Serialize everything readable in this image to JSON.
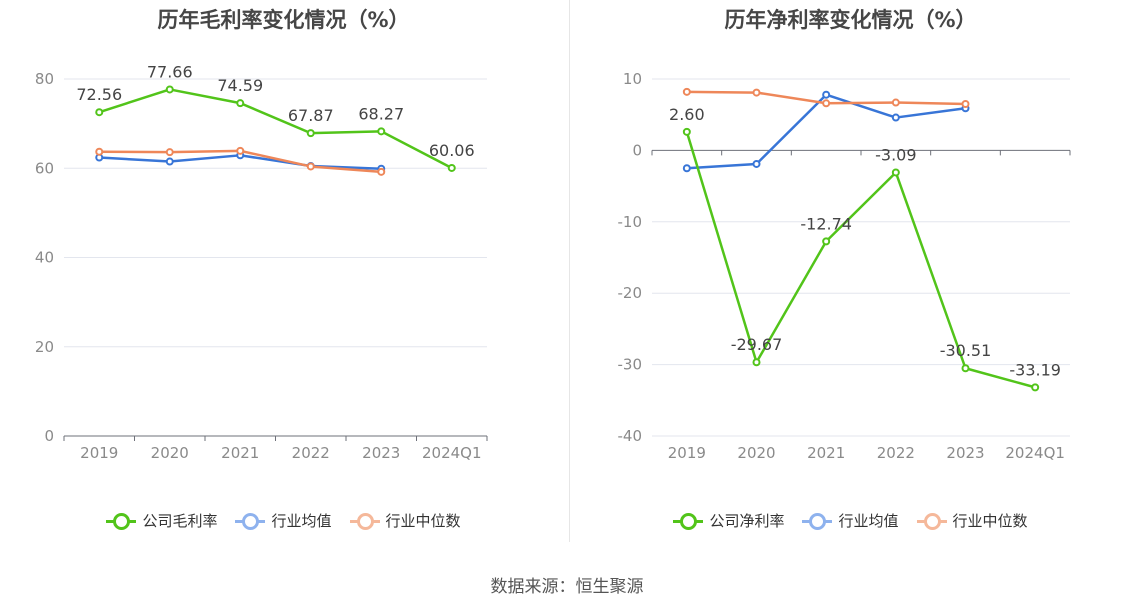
{
  "footer": {
    "source": "数据来源：恒生聚源"
  },
  "chart_data": [
    {
      "type": "line",
      "title": "历年毛利率变化情况（%）",
      "categories": [
        "2019",
        "2020",
        "2021",
        "2022",
        "2023",
        "2024Q1"
      ],
      "ylim": [
        0,
        80
      ],
      "yticks": [
        0,
        20,
        40,
        60,
        80
      ],
      "grid": true,
      "legend_position": "bottom",
      "series": [
        {
          "name": "公司毛利率",
          "color": "#52c41a",
          "values": [
            72.56,
            77.66,
            74.59,
            67.87,
            68.27,
            60.06
          ],
          "labels": [
            "72.56",
            "77.66",
            "74.59",
            "67.87",
            "68.27",
            "60.06"
          ]
        },
        {
          "name": "行业均值",
          "color": "#3875d7",
          "legend_color": "#8eb2ee",
          "values": [
            62.4,
            61.5,
            62.9,
            60.5,
            59.9,
            null
          ]
        },
        {
          "name": "行业中位数",
          "color": "#ee8759",
          "legend_color": "#f5b89a",
          "values": [
            63.7,
            63.6,
            63.9,
            60.4,
            59.2,
            null
          ]
        }
      ]
    },
    {
      "type": "line",
      "title": "历年净利率变化情况（%）",
      "categories": [
        "2019",
        "2020",
        "2021",
        "2022",
        "2023",
        "2024Q1"
      ],
      "ylim": [
        -40,
        10
      ],
      "yticks": [
        -40,
        -30,
        -20,
        -10,
        0,
        10
      ],
      "grid": true,
      "legend_position": "bottom",
      "series": [
        {
          "name": "公司净利率",
          "color": "#52c41a",
          "values": [
            2.6,
            -29.67,
            -12.74,
            -3.09,
            -30.51,
            -33.19
          ],
          "labels": [
            "2.60",
            "-29.67",
            "-12.74",
            "-3.09",
            "-30.51",
            "-33.19"
          ]
        },
        {
          "name": "行业均值",
          "color": "#3875d7",
          "legend_color": "#8eb2ee",
          "values": [
            -2.5,
            -1.9,
            7.8,
            4.6,
            5.9,
            null
          ]
        },
        {
          "name": "行业中位数",
          "color": "#ee8759",
          "legend_color": "#f5b89a",
          "values": [
            8.2,
            8.1,
            6.6,
            6.7,
            6.5,
            null
          ]
        }
      ]
    }
  ]
}
